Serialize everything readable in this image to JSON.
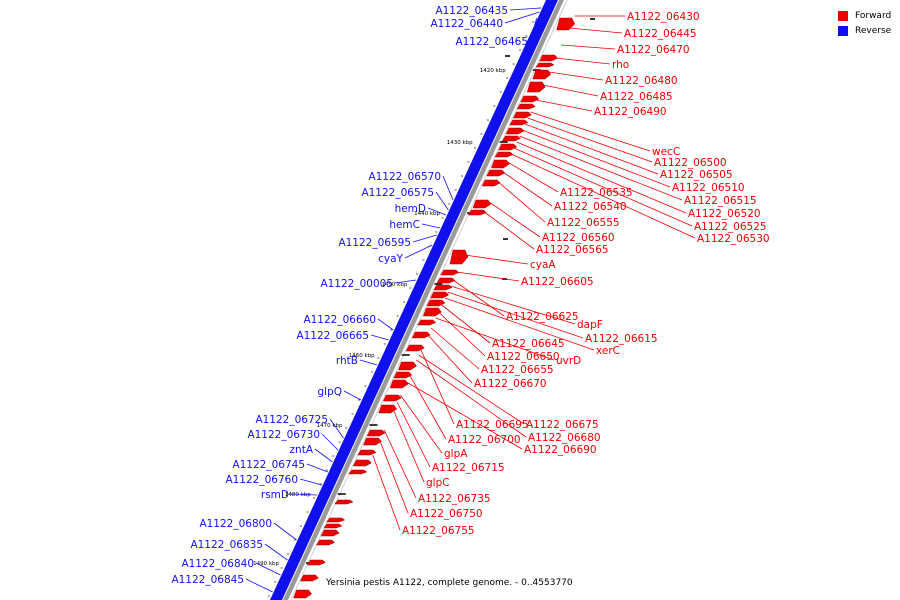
{
  "legend": {
    "forward": {
      "label": "Forward",
      "color": "#ee0000"
    },
    "reverse": {
      "label": "Reverse",
      "color": "#1010ee"
    }
  },
  "caption": "Yersinia pestis A1122, complete genome. - 0..4553770",
  "ticks": [
    "1420 kbp",
    "1430 kbp",
    "1440 kbp",
    "1450 kbp",
    "1460 kbp",
    "1470 kbp",
    "1480 kbp",
    "1490 kbp"
  ],
  "reverse_labels": [
    "A1122_06435",
    "A1122_06440",
    "A1122_06465",
    "A1122_06570",
    "A1122_06575",
    "hemD",
    "hemC",
    "A1122_06595",
    "cyaY",
    "A1122_00005",
    "A1122_06660",
    "A1122_06665",
    "rhtB",
    "glpQ",
    "A1122_06725",
    "A1122_06730",
    "zntA",
    "A1122_06745",
    "A1122_06760",
    "rsmD",
    "A1122_06800",
    "A1122_06835",
    "A1122_06840",
    "A1122_06845"
  ],
  "forward_labels": [
    "A1122_06430",
    "A1122_06445",
    "A1122_06470",
    "rho",
    "A1122_06480",
    "A1122_06485",
    "A1122_06490",
    "wecC",
    "A1122_06500",
    "A1122_06505",
    "A1122_06510",
    "A1122_06515",
    "A1122_06520",
    "A1122_06525",
    "A1122_06530",
    "A1122_06535",
    "A1122_06540",
    "A1122_06555",
    "A1122_06560",
    "A1122_06565",
    "cyaA",
    "A1122_06605",
    "A1122_06625",
    "dapF",
    "A1122_06615",
    "xerC",
    "A1122_06645",
    "A1122_06650",
    "uvrD",
    "A1122_06655",
    "A1122_06670",
    "A1122_06695",
    "A1122_06675",
    "A1122_06680",
    "A1122_06700",
    "A1122_06690",
    "glpA",
    "A1122_06715",
    "glpC",
    "A1122_06735",
    "A1122_06750",
    "A1122_06755"
  ]
}
